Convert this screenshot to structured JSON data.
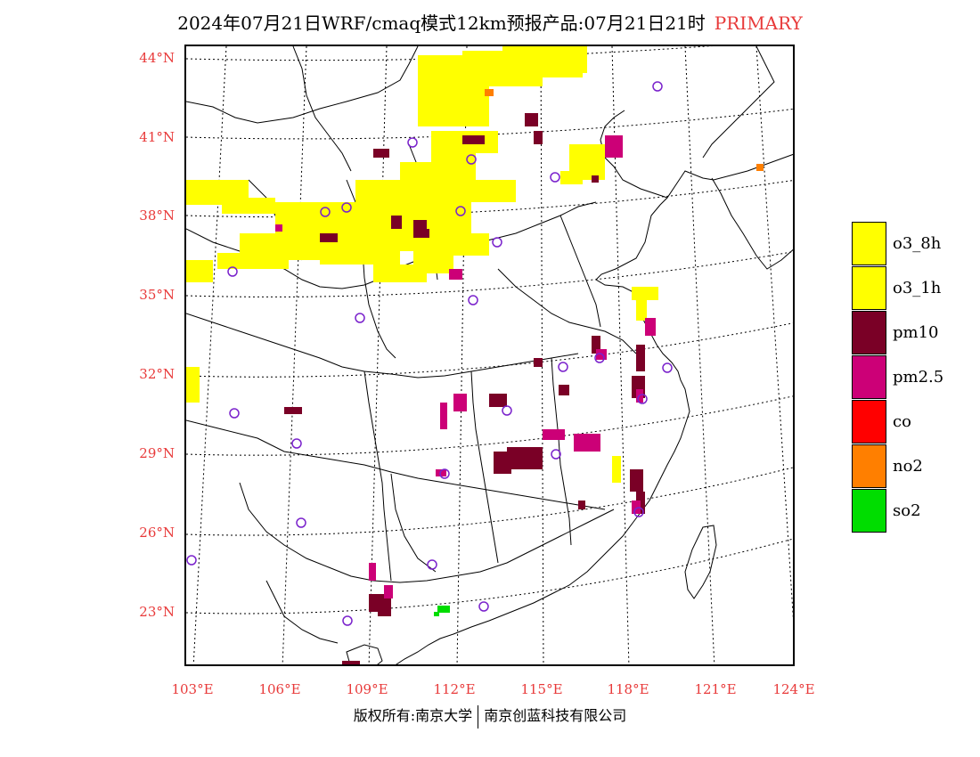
{
  "header": {
    "title": "2024年07月21日WRF/cmaq模式12km预报产品:07月21日21时",
    "mode": "PRIMARY"
  },
  "map": {
    "lat_labels": [
      "44°N",
      "41°N",
      "38°N",
      "35°N",
      "32°N",
      "29°N",
      "26°N",
      "23°N"
    ],
    "lon_labels": [
      "103°E",
      "106°E",
      "109°E",
      "112°E",
      "115°E",
      "118°E",
      "121°E",
      "124°E"
    ],
    "colors": {
      "o3": "#ffff00",
      "pm10": "#7a0026",
      "pm25": "#cc0077",
      "no2": "#ff7f00",
      "so2": "#00dd00",
      "station": "#7a22cc"
    }
  },
  "legend": {
    "items": [
      {
        "label": "o3_8h",
        "color": "#ffff00"
      },
      {
        "label": "o3_1h",
        "color": "#ffff00"
      },
      {
        "label": "pm10",
        "color": "#7a0026"
      },
      {
        "label": "pm2.5",
        "color": "#cc0077"
      },
      {
        "label": "co",
        "color": "#ff0000"
      },
      {
        "label": "no2",
        "color": "#ff7f00"
      },
      {
        "label": "so2",
        "color": "#00dd00"
      }
    ]
  },
  "footer": {
    "left": "版权所有:南京大学",
    "right": "南京创蓝科技有限公司"
  }
}
